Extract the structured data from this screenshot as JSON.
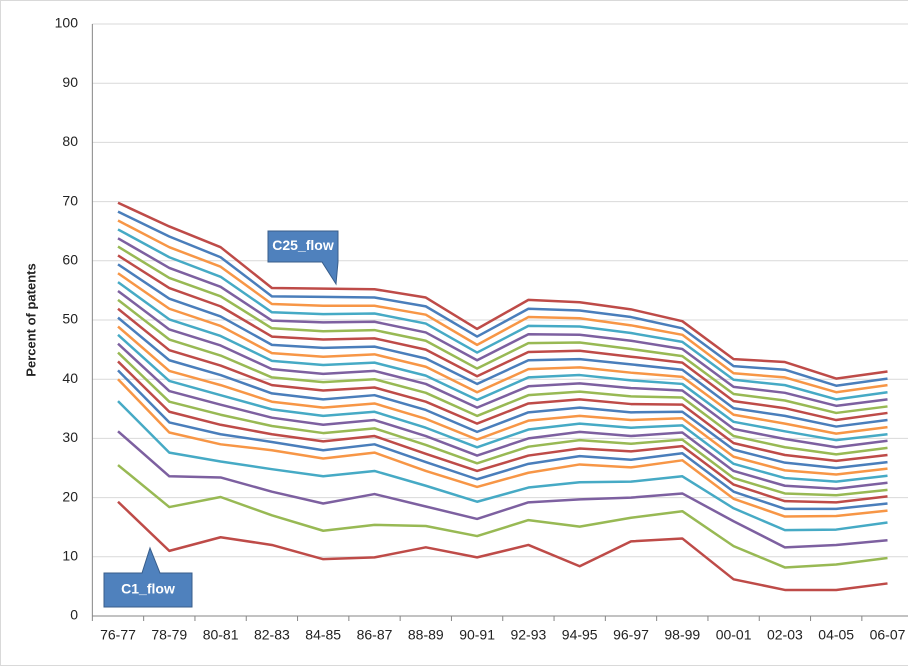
{
  "chart_data": {
    "type": "line",
    "y_label": "Percent of patents",
    "categories": [
      "76-77",
      "78-79",
      "80-81",
      "82-83",
      "84-85",
      "86-87",
      "88-89",
      "90-91",
      "92-93",
      "94-95",
      "96-97",
      "98-99",
      "00-01",
      "02-03",
      "04-05",
      "06-07"
    ],
    "ylim": [
      0,
      100
    ],
    "yticks": [
      0,
      10,
      20,
      30,
      40,
      50,
      60,
      70,
      80,
      90,
      100
    ],
    "grid": true,
    "annotations": [
      "C1_flow",
      "C25_flow"
    ],
    "series": [
      {
        "color": "#be4b48",
        "values": [
          19.3,
          11,
          13.3,
          12,
          9.6,
          9.9,
          11.6,
          9.9,
          12,
          8.4,
          12.6,
          13.1,
          6.2,
          4.4,
          4.4,
          5.5
        ]
      },
      {
        "color": "#98b954",
        "values": [
          25.5,
          18.4,
          20.1,
          17,
          14.4,
          15.4,
          15.2,
          13.5,
          16.2,
          15.1,
          16.6,
          17.7,
          11.8,
          8.2,
          8.7,
          9.8
        ]
      },
      {
        "color": "#7d60a0",
        "values": [
          31.2,
          23.6,
          23.4,
          21,
          19,
          20.6,
          18.5,
          16.4,
          19.2,
          19.7,
          20,
          20.7,
          16,
          11.6,
          12,
          12.8
        ]
      },
      {
        "color": "#46aac5",
        "values": [
          36.3,
          27.6,
          26.1,
          24.8,
          23.6,
          24.5,
          22,
          19.3,
          21.7,
          22.6,
          22.7,
          23.6,
          18.2,
          14.5,
          14.6,
          15.8
        ]
      },
      {
        "color": "#f79646",
        "values": [
          40,
          31,
          29,
          28,
          26.6,
          27.6,
          24.5,
          21.8,
          24.2,
          25.6,
          25.1,
          26.3,
          19.8,
          16.8,
          16.9,
          17.8
        ]
      },
      {
        "color": "#4a7ebb",
        "values": [
          41.5,
          32.7,
          30.7,
          29.4,
          28.0,
          29.0,
          26.0,
          23.1,
          25.7,
          27.0,
          26.4,
          27.5,
          21.0,
          18.1,
          18.1,
          19.0
        ]
      },
      {
        "color": "#be4b48",
        "values": [
          43.0,
          34.5,
          32.3,
          30.7,
          29.5,
          30.4,
          27.4,
          24.5,
          27.1,
          28.3,
          27.8,
          28.7,
          22.2,
          19.4,
          19.2,
          20.2
        ]
      },
      {
        "color": "#98b954",
        "values": [
          44.5,
          36.2,
          34.0,
          32.1,
          30.9,
          31.7,
          28.9,
          25.8,
          28.6,
          29.7,
          29.1,
          29.8,
          23.3,
          20.7,
          20.4,
          21.3
        ]
      },
      {
        "color": "#7d60a0",
        "values": [
          46.0,
          38.0,
          35.7,
          33.5,
          32.3,
          33.1,
          30.4,
          27.1,
          30.0,
          31.1,
          30.4,
          31.0,
          24.5,
          22.0,
          21.5,
          22.5
        ]
      },
      {
        "color": "#46aac5",
        "values": [
          47.5,
          39.7,
          37.3,
          34.9,
          33.8,
          34.5,
          31.8,
          28.5,
          31.5,
          32.5,
          31.8,
          32.2,
          25.7,
          23.3,
          22.7,
          23.7
        ]
      },
      {
        "color": "#f79646",
        "values": [
          48.9,
          41.4,
          39.0,
          36.2,
          35.2,
          35.9,
          33.3,
          29.8,
          33.0,
          33.8,
          33.1,
          33.4,
          26.9,
          24.6,
          23.9,
          24.9
        ]
      },
      {
        "color": "#4a7ebb",
        "values": [
          50.4,
          43.2,
          40.7,
          37.6,
          36.6,
          37.3,
          34.8,
          31.1,
          34.4,
          35.2,
          34.4,
          34.5,
          28.1,
          25.9,
          25.0,
          26.0
        ]
      },
      {
        "color": "#be4b48",
        "values": [
          51.9,
          44.9,
          42.3,
          39.0,
          38.1,
          38.6,
          36.2,
          32.5,
          35.9,
          36.6,
          35.8,
          35.7,
          29.2,
          27.2,
          26.2,
          27.2
        ]
      },
      {
        "color": "#98b954",
        "values": [
          53.4,
          46.7,
          44.0,
          40.3,
          39.5,
          40.0,
          37.7,
          33.8,
          37.3,
          37.9,
          37.1,
          36.9,
          30.4,
          28.5,
          27.3,
          28.4
        ]
      },
      {
        "color": "#7d60a0",
        "values": [
          54.9,
          48.4,
          45.7,
          41.7,
          40.9,
          41.4,
          39.2,
          35.2,
          38.8,
          39.3,
          38.5,
          38.1,
          31.6,
          29.9,
          28.5,
          29.6
        ]
      },
      {
        "color": "#46aac5",
        "values": [
          56.4,
          50.1,
          47.3,
          43.1,
          42.4,
          42.8,
          40.6,
          36.5,
          40.3,
          40.7,
          39.8,
          39.2,
          32.8,
          31.2,
          29.7,
          30.7
        ]
      },
      {
        "color": "#f79646",
        "values": [
          57.9,
          51.9,
          49.0,
          44.4,
          43.8,
          44.2,
          42.1,
          37.8,
          41.7,
          42.0,
          41.1,
          40.4,
          34.0,
          32.5,
          30.8,
          31.9
        ]
      },
      {
        "color": "#4a7ebb",
        "values": [
          59.4,
          53.6,
          50.6,
          45.8,
          45.3,
          45.5,
          43.5,
          39.2,
          43.2,
          43.4,
          42.5,
          41.6,
          35.1,
          33.8,
          32.0,
          33.1
        ]
      },
      {
        "color": "#be4b48",
        "values": [
          60.9,
          55.4,
          52.3,
          47.2,
          46.7,
          46.9,
          45.0,
          40.5,
          44.6,
          44.8,
          43.8,
          42.8,
          36.3,
          35.1,
          33.1,
          34.3
        ]
      },
      {
        "color": "#98b954",
        "values": [
          62.4,
          57.1,
          54.0,
          48.6,
          48.1,
          48.3,
          46.5,
          41.8,
          46.1,
          46.2,
          45.1,
          43.9,
          37.5,
          36.4,
          34.3,
          35.4
        ]
      },
      {
        "color": "#7d60a0",
        "values": [
          63.8,
          58.8,
          55.6,
          49.9,
          49.6,
          49.7,
          47.9,
          43.2,
          47.6,
          47.5,
          46.5,
          45.1,
          38.7,
          37.7,
          35.5,
          36.6
        ]
      },
      {
        "color": "#46aac5",
        "values": [
          65.3,
          60.6,
          57.3,
          51.3,
          51.0,
          51.1,
          49.4,
          44.5,
          49.0,
          48.9,
          47.8,
          46.3,
          39.9,
          39.0,
          36.6,
          37.8
        ]
      },
      {
        "color": "#f79646",
        "values": [
          66.8,
          62.3,
          59.0,
          52.7,
          52.4,
          52.4,
          50.9,
          45.8,
          50.5,
          50.3,
          49.1,
          47.5,
          41.0,
          40.3,
          37.8,
          39.0
        ]
      },
      {
        "color": "#4a7ebb",
        "values": [
          68.3,
          64.1,
          60.6,
          54.0,
          53.9,
          53.8,
          52.3,
          47.2,
          51.9,
          51.6,
          50.5,
          48.6,
          42.2,
          41.6,
          38.9,
          40.1
        ]
      },
      {
        "color": "#be4b48",
        "values": [
          69.8,
          65.8,
          62.3,
          55.4,
          55.3,
          55.2,
          53.8,
          48.5,
          53.4,
          53.0,
          51.8,
          49.8,
          43.4,
          42.9,
          40.1,
          41.3
        ]
      }
    ]
  }
}
